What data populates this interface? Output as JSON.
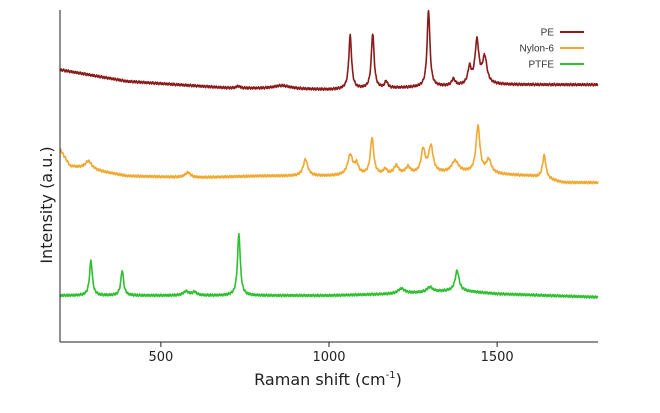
{
  "chart_data": {
    "type": "line",
    "xlabel": "Raman shift (cm",
    "xlabel_sup": "-1",
    "xlabel_end": ")",
    "ylabel": "Intensity (a.u.)",
    "xlim": [
      200,
      1800
    ],
    "ylim": [
      0,
      100
    ],
    "x_ticks": [
      500,
      1000,
      1500
    ],
    "legend_position": "top-right",
    "grid": false,
    "series": [
      {
        "name": "PE",
        "color": "#8b1a1a",
        "baseline": [
          [
            200,
            82
          ],
          [
            400,
            78.5
          ],
          [
            700,
            76.5
          ],
          [
            1000,
            76
          ],
          [
            1200,
            76.5
          ],
          [
            1500,
            77.5
          ],
          [
            1800,
            77.5
          ]
        ],
        "peaks": [
          {
            "x": 730,
            "h": 0.6,
            "w": 6
          },
          {
            "x": 860,
            "h": 1.0,
            "w": 30
          },
          {
            "x": 1063,
            "h": 16,
            "w": 5
          },
          {
            "x": 1130,
            "h": 16.5,
            "w": 5
          },
          {
            "x": 1170,
            "h": 2,
            "w": 5
          },
          {
            "x": 1296,
            "h": 23,
            "w": 5
          },
          {
            "x": 1370,
            "h": 2,
            "w": 6
          },
          {
            "x": 1418,
            "h": 5,
            "w": 6
          },
          {
            "x": 1440,
            "h": 13,
            "w": 7
          },
          {
            "x": 1463,
            "h": 8,
            "w": 8
          }
        ]
      },
      {
        "name": "Nylon-6",
        "color": "#f0a830",
        "baseline": [
          [
            200,
            58
          ],
          [
            230,
            53
          ],
          [
            400,
            50
          ],
          [
            600,
            49.5
          ],
          [
            800,
            50
          ],
          [
            1000,
            50
          ],
          [
            1200,
            50.5
          ],
          [
            1400,
            51
          ],
          [
            1600,
            50
          ],
          [
            1700,
            48
          ],
          [
            1800,
            48
          ]
        ],
        "peaks": [
          {
            "x": 285,
            "h": 2.5,
            "w": 12
          },
          {
            "x": 580,
            "h": 1.5,
            "w": 10
          },
          {
            "x": 930,
            "h": 5,
            "w": 8
          },
          {
            "x": 1063,
            "h": 6,
            "w": 9
          },
          {
            "x": 1082,
            "h": 3,
            "w": 7
          },
          {
            "x": 1128,
            "h": 11,
            "w": 6
          },
          {
            "x": 1167,
            "h": 1.5,
            "w": 6
          },
          {
            "x": 1200,
            "h": 2.5,
            "w": 8
          },
          {
            "x": 1235,
            "h": 2,
            "w": 8
          },
          {
            "x": 1280,
            "h": 7,
            "w": 7
          },
          {
            "x": 1303,
            "h": 8,
            "w": 8
          },
          {
            "x": 1375,
            "h": 3.5,
            "w": 12
          },
          {
            "x": 1443,
            "h": 14,
            "w": 7
          },
          {
            "x": 1475,
            "h": 4,
            "w": 9
          },
          {
            "x": 1640,
            "h": 7,
            "w": 6
          }
        ]
      },
      {
        "name": "PTFE",
        "color": "#2ec02e",
        "baseline": [
          [
            200,
            14
          ],
          [
            1000,
            14
          ],
          [
            1200,
            14.5
          ],
          [
            1380,
            15.5
          ],
          [
            1500,
            14.5
          ],
          [
            1800,
            13.5
          ]
        ],
        "peaks": [
          {
            "x": 292,
            "h": 10.5,
            "w": 5
          },
          {
            "x": 385,
            "h": 7.5,
            "w": 5
          },
          {
            "x": 575,
            "h": 1.2,
            "w": 10
          },
          {
            "x": 600,
            "h": 1.0,
            "w": 8
          },
          {
            "x": 732,
            "h": 18.5,
            "w": 5
          },
          {
            "x": 1215,
            "h": 1.5,
            "w": 12
          },
          {
            "x": 1300,
            "h": 1.5,
            "w": 10
          },
          {
            "x": 1381,
            "h": 6,
            "w": 7
          }
        ]
      }
    ]
  }
}
